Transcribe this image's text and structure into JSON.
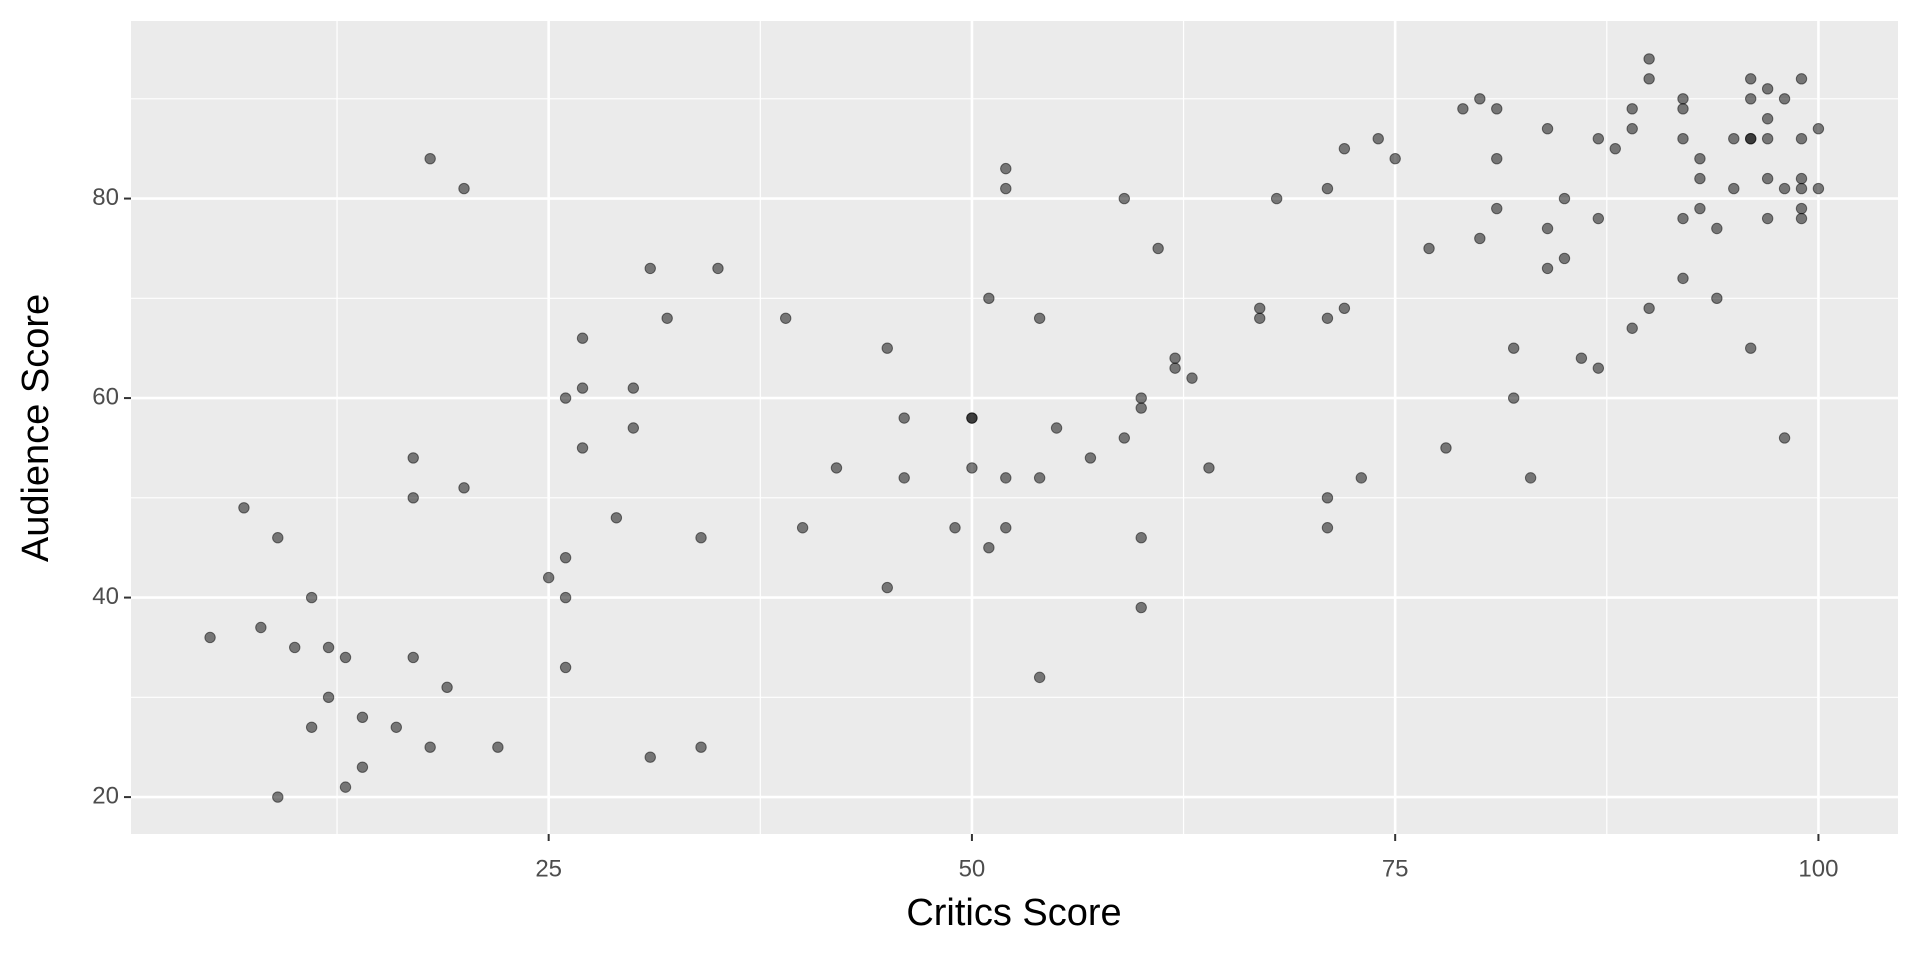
{
  "chart_data": {
    "type": "scatter",
    "x_label": "Critics Score",
    "y_label": "Audience Score",
    "xlim": [
      0.33,
      104.7
    ],
    "ylim": [
      16.3,
      97.8
    ],
    "xticks": [
      25,
      50,
      75,
      100
    ],
    "yticks": [
      20,
      40,
      60,
      80
    ],
    "x_minor_grid": [
      12.5,
      37.5,
      62.5,
      87.5
    ],
    "y_minor_grid": [
      30,
      50,
      70,
      90
    ],
    "grid": true,
    "color": "#000000",
    "alpha": 0.5,
    "x": [
      5,
      7,
      8,
      9,
      9,
      10,
      11,
      11,
      12,
      12,
      13,
      13,
      14,
      14,
      16,
      17,
      17,
      17,
      18,
      18,
      19,
      20,
      20,
      22,
      25,
      26,
      26,
      26,
      26,
      27,
      27,
      27,
      29,
      30,
      30,
      31,
      31,
      32,
      34,
      34,
      35,
      39,
      40,
      42,
      45,
      45,
      46,
      46,
      49,
      50,
      50,
      50,
      51,
      51,
      52,
      52,
      52,
      52,
      54,
      54,
      54,
      55,
      57,
      59,
      59,
      60,
      60,
      60,
      60,
      61,
      62,
      62,
      63,
      64,
      67,
      67,
      68,
      71,
      71,
      71,
      71,
      72,
      72,
      73,
      74,
      75,
      77,
      78,
      79,
      80,
      80,
      81,
      81,
      81,
      82,
      82,
      83,
      84,
      84,
      84,
      85,
      85,
      86,
      87,
      87,
      87,
      88,
      89,
      89,
      89,
      90,
      90,
      90,
      92,
      92,
      92,
      92,
      92,
      93,
      93,
      93,
      94,
      94,
      95,
      95,
      96,
      96,
      96,
      96,
      96,
      97,
      97,
      97,
      97,
      97,
      98,
      98,
      98,
      99,
      99,
      99,
      99,
      99,
      99,
      100,
      100
    ],
    "y": [
      36,
      49,
      37,
      46,
      20,
      35,
      40,
      27,
      35,
      30,
      34,
      21,
      28,
      23,
      27,
      54,
      50,
      34,
      84,
      25,
      31,
      81,
      51,
      25,
      42,
      60,
      44,
      40,
      33,
      66,
      61,
      55,
      48,
      61,
      57,
      73,
      24,
      68,
      46,
      25,
      73,
      68,
      47,
      53,
      65,
      41,
      58,
      52,
      47,
      58,
      58,
      53,
      70,
      45,
      83,
      81,
      52,
      47,
      68,
      52,
      32,
      57,
      54,
      80,
      56,
      60,
      59,
      46,
      39,
      75,
      64,
      63,
      62,
      53,
      69,
      68,
      80,
      81,
      68,
      50,
      47,
      85,
      69,
      52,
      86,
      84,
      75,
      55,
      89,
      90,
      76,
      89,
      84,
      79,
      65,
      60,
      52,
      87,
      77,
      73,
      80,
      74,
      64,
      86,
      78,
      63,
      85,
      89,
      87,
      67,
      94,
      92,
      69,
      90,
      89,
      86,
      78,
      72,
      84,
      82,
      79,
      77,
      70,
      86,
      81,
      92,
      90,
      86,
      86,
      65,
      91,
      88,
      86,
      82,
      78,
      90,
      81,
      56,
      92,
      86,
      82,
      81,
      79,
      78,
      87,
      81
    ]
  }
}
